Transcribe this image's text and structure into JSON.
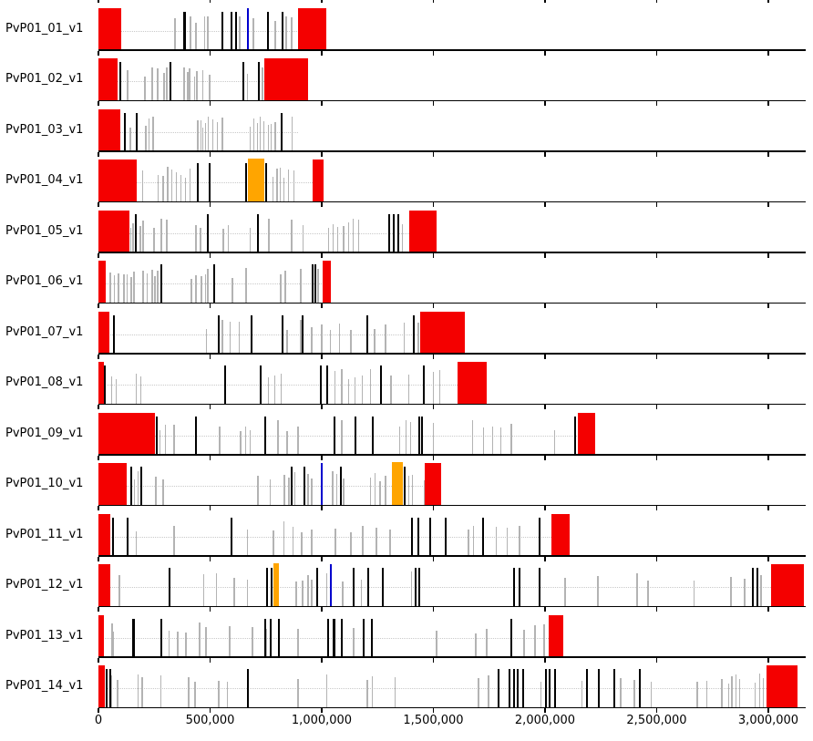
{
  "colors": {
    "subtelomere_block": "#f40000",
    "orange_block": "#ffa500",
    "black_marker": "#000000",
    "gray_marker": "#b3b3b3",
    "blue_marker": "#0000cd",
    "axis": "#000000",
    "dotted_midline": "#c9c9c9"
  },
  "axis": {
    "tick_values": [
      0,
      500000,
      1000000,
      1500000,
      2000000,
      2500000,
      3000000
    ],
    "tick_labels": [
      "0",
      "500,000",
      "1,000,000",
      "1,500,000",
      "2,000,000",
      "2,500,000",
      "3,000,000"
    ],
    "max_bp": 3167000
  },
  "chart_data": {
    "type": "genome-feature-tracks",
    "title": "",
    "xlabel": "",
    "xlim": [
      0,
      3167000
    ],
    "rows": [
      {
        "label": "PvP01_01_v1",
        "length": 1021000,
        "red_blocks": [
          [
            0,
            102000
          ],
          [
            894000,
            1021000
          ]
        ],
        "orange_blocks": [],
        "black_markers": [
          386000,
          555000,
          596000,
          617000,
          760000,
          824000
        ],
        "gray_markers": [
          343000,
          412000,
          437000,
          477000,
          490000,
          633000,
          694000,
          792000,
          841000,
          865000
        ],
        "blue_markers": [
          669000
        ]
      },
      {
        "label": "PvP01_02_v1",
        "length": 940000,
        "red_blocks": [
          [
            0,
            86000
          ],
          [
            743000,
            939000
          ]
        ],
        "orange_blocks": [],
        "black_markers": [
          98000,
          322000,
          649000,
          718000
        ],
        "gray_markers": [
          131000,
          208000,
          241000,
          265000,
          294000,
          306000,
          384000,
          400000,
          408000,
          429000,
          441000,
          469000,
          498000,
          669000,
          735000
        ],
        "blue_markers": []
      },
      {
        "label": "PvP01_03_v1",
        "length": 895000,
        "red_blocks": [
          [
            0,
            96000
          ]
        ],
        "orange_blocks": [],
        "black_markers": [
          118000,
          173000,
          822000
        ],
        "gray_markers": [
          143000,
          212000,
          228000,
          245000,
          445000,
          458000,
          468000,
          478000,
          492000,
          512000,
          532000,
          555000,
          678000,
          696000,
          712000,
          726000,
          742000,
          760000,
          775000,
          792000,
          869000
        ],
        "blue_markers": []
      },
      {
        "label": "PvP01_04_v1",
        "length": 1010000,
        "red_blocks": [
          [
            0,
            173000
          ],
          [
            960000,
            1010000
          ]
        ],
        "orange_blocks": [
          [
            669000,
            743000
          ]
        ],
        "black_markers": [
          446000,
          498000,
          661000,
          751000
        ],
        "gray_markers": [
          198000,
          266000,
          290000,
          310000,
          330000,
          350000,
          370000,
          390000,
          410000,
          782000,
          800000,
          815000,
          832000,
          850000,
          874000
        ],
        "blue_markers": []
      },
      {
        "label": "PvP01_05_v1",
        "length": 1515000,
        "red_blocks": [
          [
            0,
            139000
          ],
          [
            1390000,
            1515000
          ]
        ],
        "orange_blocks": [],
        "black_markers": [
          167000,
          490000,
          714000,
          1303000,
          1322000,
          1342000
        ],
        "gray_markers": [
          145000,
          155000,
          188000,
          200000,
          249000,
          282000,
          306000,
          437000,
          457000,
          559000,
          580000,
          678000,
          763000,
          865000,
          918000,
          1029000,
          1050000,
          1070000,
          1098000,
          1119000,
          1140000,
          1164000,
          1362000
        ],
        "blue_markers": []
      },
      {
        "label": "PvP01_06_v1",
        "length": 1041000,
        "red_blocks": [
          [
            0,
            33000
          ],
          [
            1004000,
            1041000
          ]
        ],
        "orange_blocks": [],
        "black_markers": [
          282000,
          518000,
          959000,
          971000
        ],
        "gray_markers": [
          53000,
          73000,
          90000,
          114000,
          127000,
          147000,
          159000,
          200000,
          220000,
          241000,
          253000,
          265000,
          416000,
          437000,
          461000,
          478000,
          490000,
          600000,
          661000,
          816000,
          837000,
          906000,
          984000
        ],
        "blue_markers": []
      },
      {
        "label": "PvP01_07_v1",
        "length": 1640000,
        "red_blocks": [
          [
            0,
            50000
          ],
          [
            1440000,
            1640000
          ]
        ],
        "orange_blocks": [],
        "black_markers": [
          70000,
          540000,
          685000,
          823000,
          915000,
          1204000,
          1412000
        ],
        "gray_markers": [
          483000,
          555000,
          590000,
          629000,
          845000,
          906000,
          955000,
          1000000,
          1040000,
          1080000,
          1131000,
          1237000,
          1286000,
          1368000,
          1433000
        ],
        "blue_markers": []
      },
      {
        "label": "PvP01_08_v1",
        "length": 1740000,
        "red_blocks": [
          [
            0,
            25000
          ],
          [
            1607000,
            1740000
          ]
        ],
        "orange_blocks": [],
        "black_markers": [
          30000,
          568000,
          726000,
          996000,
          1025000,
          1266000,
          1457000
        ],
        "gray_markers": [
          60000,
          80000,
          170000,
          190000,
          760000,
          790000,
          820000,
          1060000,
          1090000,
          1120000,
          1150000,
          1180000,
          1220000,
          1310000,
          1390000,
          1500000,
          1530000
        ],
        "blue_markers": []
      },
      {
        "label": "PvP01_09_v1",
        "length": 2225000,
        "red_blocks": [
          [
            0,
            253000
          ],
          [
            2145000,
            2225000
          ]
        ],
        "orange_blocks": [],
        "black_markers": [
          262000,
          437000,
          747000,
          1057000,
          1152000,
          1229000,
          1437000,
          1449000,
          2135000
        ],
        "gray_markers": [
          275000,
          300000,
          339000,
          543000,
          637000,
          660000,
          678000,
          804000,
          845000,
          894000,
          1090000,
          1349000,
          1376000,
          1398000,
          1500000,
          1675000,
          1724000,
          1765000,
          1802000,
          1849000,
          2043000
        ],
        "blue_markers": []
      },
      {
        "label": "PvP01_10_v1",
        "length": 1535000,
        "red_blocks": [
          [
            0,
            127000
          ],
          [
            1462000,
            1535000
          ]
        ],
        "orange_blocks": [
          [
            1315000,
            1364000
          ]
        ],
        "black_markers": [
          147000,
          192000,
          865000,
          922000,
          1086000,
          1372000
        ],
        "gray_markers": [
          160000,
          178000,
          257000,
          290000,
          714000,
          771000,
          833000,
          853000,
          878000,
          939000,
          955000,
          1049000,
          1069000,
          1098000,
          1217000,
          1240000,
          1261000,
          1286000,
          1390000,
          1405000,
          1458000
        ],
        "blue_markers": [
          1000000
        ]
      },
      {
        "label": "PvP01_11_v1",
        "length": 2110000,
        "red_blocks": [
          [
            0,
            53000
          ],
          [
            2028000,
            2110000
          ]
        ],
        "orange_blocks": [],
        "black_markers": [
          65000,
          131000,
          596000,
          1404000,
          1433000,
          1486000,
          1555000,
          1722000,
          1976000
        ],
        "gray_markers": [
          171000,
          339000,
          669000,
          784000,
          830000,
          870000,
          910000,
          955000,
          1061000,
          1131000,
          1184000,
          1245000,
          1306000,
          1657000,
          1678000,
          1780000,
          1830000,
          1886000
        ],
        "blue_markers": []
      },
      {
        "label": "PvP01_12_v1",
        "length": 3160000,
        "red_blocks": [
          [
            0,
            53000
          ],
          [
            3013000,
            3160000
          ]
        ],
        "orange_blocks": [
          [
            784000,
            808000
          ]
        ],
        "black_markers": [
          318000,
          755000,
          776000,
          980000,
          1143000,
          1209000,
          1273000,
          1420000,
          1437000,
          1861000,
          1886000,
          1976000,
          2931000,
          2951000
        ],
        "gray_markers": [
          94000,
          473000,
          527000,
          608000,
          669000,
          886000,
          914000,
          939000,
          955000,
          1021000,
          1094000,
          1176000,
          1402000,
          2090000,
          2237000,
          2412000,
          2461000,
          2669000,
          2833000,
          2894000,
          2967000
        ],
        "blue_markers": [
          1041000
        ]
      },
      {
        "label": "PvP01_13_v1",
        "length": 2082000,
        "red_blocks": [
          [
            0,
            25000
          ],
          [
            2016000,
            2082000
          ]
        ],
        "orange_blocks": [],
        "black_markers": [
          157000,
          281000,
          747000,
          772000,
          808000,
          1030000,
          1055000,
          1090000,
          1188000,
          1225000,
          1849000
        ],
        "gray_markers": [
          61000,
          69000,
          318000,
          355000,
          392000,
          453000,
          482000,
          588000,
          690000,
          751000,
          894000,
          1143000,
          1514000,
          1690000,
          1739000,
          1906000,
          1955000,
          1996000
        ],
        "blue_markers": []
      },
      {
        "label": "PvP01_14_v1",
        "length": 3130000,
        "red_blocks": [
          [
            0,
            30000
          ],
          [
            2993000,
            3130000
          ]
        ],
        "orange_blocks": [],
        "black_markers": [
          37000,
          53000,
          669000,
          1792000,
          1841000,
          1861000,
          1878000,
          1902000,
          2004000,
          2021000,
          2045000,
          2188000,
          2241000,
          2311000,
          2425000
        ],
        "gray_markers": [
          57000,
          86000,
          176000,
          196000,
          278000,
          404000,
          433000,
          539000,
          576000,
          894000,
          1021000,
          1204000,
          1225000,
          1327000,
          1702000,
          1747000,
          1980000,
          2164000,
          2339000,
          2400000,
          2474000,
          2682000,
          2723000,
          2792000,
          2821000,
          2837000,
          2854000,
          2870000,
          2940000,
          2960000,
          2976000
        ],
        "blue_markers": []
      }
    ]
  }
}
